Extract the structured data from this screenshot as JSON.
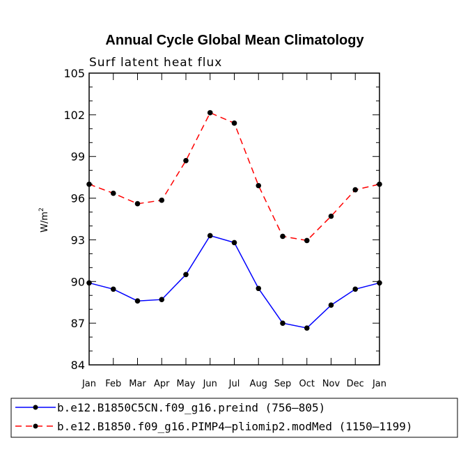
{
  "chart_data": {
    "type": "line",
    "title": "Annual Cycle Global Mean Climatology",
    "subtitle": "Surf latent heat flux",
    "ylabel": "W/m",
    "ylabel_exponent": "2",
    "xlabel": "",
    "categories": [
      "Jan",
      "Feb",
      "Mar",
      "Apr",
      "May",
      "Jun",
      "Jul",
      "Aug",
      "Sep",
      "Oct",
      "Nov",
      "Dec",
      "Jan"
    ],
    "ylim": [
      84,
      105
    ],
    "yticks": [
      84,
      87,
      90,
      93,
      96,
      99,
      102,
      105
    ],
    "grid": false,
    "legend_position": "bottom",
    "series": [
      {
        "name": "b.e12.B1850C5CN.f09_g16.preind (756–805)",
        "color": "#0000ff",
        "dash": "solid",
        "values": [
          89.9,
          89.45,
          88.6,
          88.7,
          90.5,
          93.3,
          92.8,
          89.5,
          87.0,
          86.65,
          88.3,
          89.45,
          89.9
        ]
      },
      {
        "name": "b.e12.B1850.f09_g16.PIMP4–pliomip2.modMed (1150–1199)",
        "color": "#ff0000",
        "dash": "dashed",
        "values": [
          97.0,
          96.35,
          95.6,
          95.85,
          98.7,
          102.15,
          101.4,
          96.9,
          93.25,
          92.95,
          94.7,
          96.6,
          97.0
        ]
      }
    ]
  }
}
